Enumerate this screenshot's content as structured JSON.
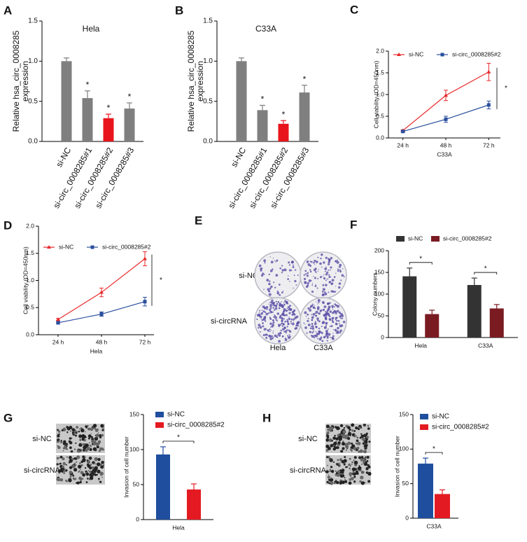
{
  "chart_data": [
    {
      "type": "bar",
      "panel": "A",
      "title": "Hela",
      "ylabel": [
        "Relative hsa_circ_0008285",
        "expression"
      ],
      "categories": [
        "si-NC",
        "si-circ_0008285#1",
        "si-circ_0008285#2",
        "si-circ_0008285#3"
      ],
      "values": [
        1.0,
        0.54,
        0.29,
        0.41
      ],
      "errors": [
        0.04,
        0.09,
        0.05,
        0.07
      ],
      "colors": [
        "#7f7f7f",
        "#7f7f7f",
        "#e8141b",
        "#7f7f7f"
      ],
      "significance": [
        null,
        "*",
        "*",
        "*"
      ],
      "ylim": [
        0,
        1.5
      ],
      "yticks": [
        {
          "value": 0,
          "label": "0.0"
        },
        0.5,
        {
          "value": 1,
          "label": "1.0"
        },
        1.5
      ]
    },
    {
      "type": "bar",
      "panel": "B",
      "title": "C33A",
      "ylabel": [
        "Relative hsa_circ_0008285",
        "expression"
      ],
      "categories": [
        "si-NC",
        "si-circ_0008285#1",
        "si-circ_0008285#2",
        "si-circ_0008285#3"
      ],
      "values": [
        1.0,
        0.39,
        0.22,
        0.61
      ],
      "errors": [
        0.04,
        0.06,
        0.04,
        0.09
      ],
      "colors": [
        "#7f7f7f",
        "#7f7f7f",
        "#e8141b",
        "#7f7f7f"
      ],
      "significance": [
        null,
        "*",
        "*",
        "*"
      ],
      "ylim": [
        0,
        1.5
      ],
      "yticks": [
        {
          "value": 0,
          "label": "0.0"
        },
        0.5,
        {
          "value": 1,
          "label": "1.0"
        },
        1.5
      ]
    },
    {
      "type": "line",
      "panel": "C",
      "ylabel": "Cell viability (OD=450nm)",
      "xlabel": "C33A",
      "categories": [
        "24 h",
        "48 h",
        "72 h"
      ],
      "series": [
        {
          "name": "si-NC",
          "color": "#e8272a",
          "marker": "triangle",
          "values": [
            0.17,
            0.98,
            1.52
          ],
          "errors": [
            0.02,
            0.12,
            0.2
          ]
        },
        {
          "name": "si-circ_0008285#2",
          "color": "#2a4f9e",
          "marker": "square",
          "values": [
            0.15,
            0.43,
            0.76
          ],
          "errors": [
            0.02,
            0.07,
            0.09
          ]
        }
      ],
      "significance": "*",
      "ylim": [
        0,
        2
      ],
      "yticks": [
        {
          "value": 0,
          "label": "0.0"
        },
        0.5,
        {
          "value": 1,
          "label": "1.0"
        },
        1.5,
        {
          "value": 2,
          "label": "2.0"
        }
      ]
    },
    {
      "type": "line",
      "panel": "D",
      "ylabel": "Cell viability (OD=450nm)",
      "xlabel": "Hela",
      "categories": [
        "24 h",
        "48 h",
        "72 h"
      ],
      "series": [
        {
          "name": "si-NC",
          "color": "#e8272a",
          "marker": "triangle",
          "values": [
            0.28,
            0.78,
            1.4
          ],
          "errors": [
            0.02,
            0.08,
            0.13
          ]
        },
        {
          "name": "si-circ_0008285#2",
          "color": "#2a4f9e",
          "marker": "square",
          "values": [
            0.22,
            0.38,
            0.61
          ],
          "errors": [
            0.02,
            0.04,
            0.08
          ]
        }
      ],
      "significance": "*",
      "ylim": [
        0,
        2
      ],
      "yticks": [
        {
          "value": 0,
          "label": "0.0"
        },
        0.5,
        {
          "value": 1,
          "label": "1.0"
        },
        1.5,
        {
          "value": 2,
          "label": "2.0"
        }
      ]
    },
    {
      "type": "bar",
      "panel": "F",
      "ylabel": "Colony numbers",
      "categories": [
        "Hela",
        "C33A"
      ],
      "series": [
        {
          "name": "si-NC",
          "color": "#333333",
          "values": [
            141,
            121
          ],
          "errors": [
            19,
            16
          ]
        },
        {
          "name": "si-circ_0008285#2",
          "color": "#7a1b22",
          "values": [
            54,
            67
          ],
          "errors": [
            9,
            9
          ]
        }
      ],
      "significance": [
        "*",
        "*"
      ],
      "ylim": [
        0,
        200
      ],
      "yticks": [
        0,
        50,
        100,
        150,
        200
      ]
    },
    {
      "type": "bar",
      "panel": "G",
      "ylabel": "Invasion of cell number",
      "categories": [
        "Hela"
      ],
      "image_labels": [
        "si-NC",
        "si-circRNA"
      ],
      "series": [
        {
          "name": "si-NC",
          "color": "#1f4e9f",
          "values": [
            93
          ],
          "errors": [
            11
          ]
        },
        {
          "name": "si-circ_0008285#2",
          "color": "#e41a22",
          "values": [
            43
          ],
          "errors": [
            8
          ]
        }
      ],
      "significance": "*",
      "ylim": [
        0,
        150
      ],
      "yticks": [
        0,
        50,
        100,
        150
      ]
    },
    {
      "type": "bar",
      "panel": "H",
      "ylabel": "Invasion of cell number",
      "categories": [
        "C33A"
      ],
      "image_labels": [
        "si-NC",
        "si-circRNA"
      ],
      "series": [
        {
          "name": "si-NC",
          "color": "#1f4e9f",
          "values": [
            79
          ],
          "errors": [
            8
          ]
        },
        {
          "name": "si-circ_0008285#2",
          "color": "#e41a22",
          "values": [
            35
          ],
          "errors": [
            6
          ]
        }
      ],
      "significance": "*",
      "ylim": [
        0,
        150
      ],
      "yticks": [
        0,
        50,
        100,
        150
      ]
    }
  ],
  "figure_e": {
    "panel": "E",
    "rows": [
      "si-NC",
      "si-circRNA"
    ],
    "columns": [
      "Hela",
      "C33A"
    ]
  }
}
